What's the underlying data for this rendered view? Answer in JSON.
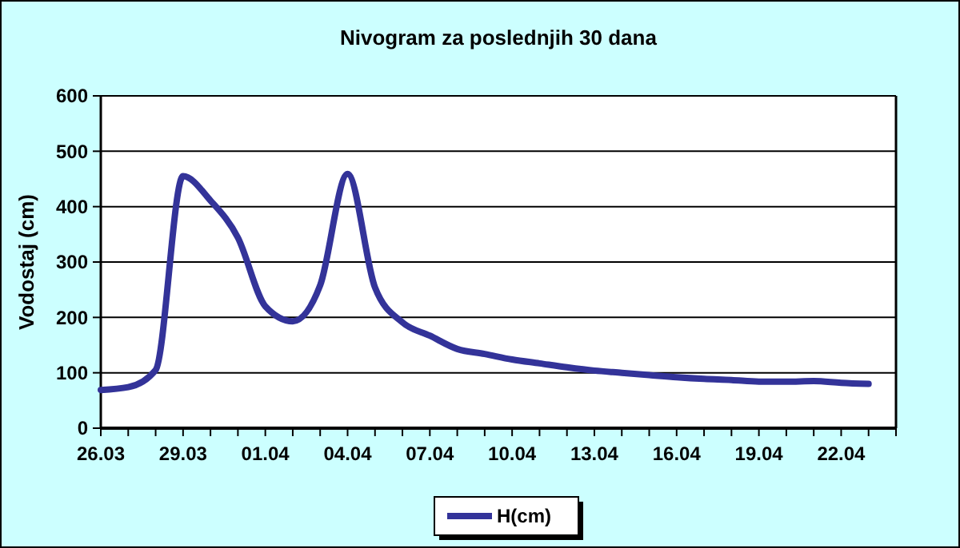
{
  "chart_data": {
    "type": "line",
    "title": "Nivogram za poslednjih 30 dana",
    "ylabel": "Vodostaj (cm)",
    "x": [
      "--03-26",
      "--03-27",
      "--03-28",
      "--03-29",
      "--03-30",
      "--03-31",
      "--04-01",
      "--04-02",
      "--04-03",
      "--04-04",
      "--04-05",
      "--04-06",
      "--04-07",
      "--04-08",
      "--04-09",
      "--04-10",
      "--04-11",
      "--04-12",
      "--04-13",
      "--04-14",
      "--04-15",
      "--04-16",
      "--04-17",
      "--04-18",
      "--04-19",
      "--04-20",
      "--04-21",
      "--04-22",
      "--04-23"
    ],
    "series": [
      {
        "name": "H(cm)",
        "color": "#333399",
        "values": [
          69,
          74,
          105,
          455,
          411,
          344,
          220,
          193,
          258,
          459,
          254,
          191,
          167,
          143,
          134,
          124,
          117,
          110,
          104,
          100,
          96,
          92,
          89,
          87,
          84,
          84,
          85,
          82,
          80
        ]
      }
    ],
    "xlim": [
      "--03-26",
      "--04-24"
    ],
    "xticks": [
      {
        "value": "--03-26",
        "label": "26.03"
      },
      {
        "value": "--03-27",
        "label": null
      },
      {
        "value": "--03-28",
        "label": null
      },
      {
        "value": "--03-29",
        "label": "29.03"
      },
      {
        "value": "--03-30",
        "label": null
      },
      {
        "value": "--03-31",
        "label": null
      },
      {
        "value": "--04-01",
        "label": "01.04"
      },
      {
        "value": "--04-02",
        "label": null
      },
      {
        "value": "--04-03",
        "label": null
      },
      {
        "value": "--04-04",
        "label": "04.04"
      },
      {
        "value": "--04-05",
        "label": null
      },
      {
        "value": "--04-06",
        "label": null
      },
      {
        "value": "--04-07",
        "label": "07.04"
      },
      {
        "value": "--04-08",
        "label": null
      },
      {
        "value": "--04-09",
        "label": null
      },
      {
        "value": "--04-10",
        "label": "10.04"
      },
      {
        "value": "--04-11",
        "label": null
      },
      {
        "value": "--04-12",
        "label": null
      },
      {
        "value": "--04-13",
        "label": "13.04"
      },
      {
        "value": "--04-14",
        "label": null
      },
      {
        "value": "--04-15",
        "label": null
      },
      {
        "value": "--04-16",
        "label": "16.04"
      },
      {
        "value": "--04-17",
        "label": null
      },
      {
        "value": "--04-18",
        "label": null
      },
      {
        "value": "--04-19",
        "label": "19.04"
      },
      {
        "value": "--04-20",
        "label": null
      },
      {
        "value": "--04-21",
        "label": null
      },
      {
        "value": "--04-22",
        "label": "22.04"
      },
      {
        "value": "--04-23",
        "label": null
      },
      {
        "value": "--04-24",
        "label": null
      }
    ],
    "ylim": [
      0,
      600
    ],
    "yticks": [
      0,
      100,
      200,
      300,
      400,
      500,
      600
    ],
    "grid": "y",
    "legend": "bottom",
    "marker": "none",
    "line_style": "solid"
  }
}
